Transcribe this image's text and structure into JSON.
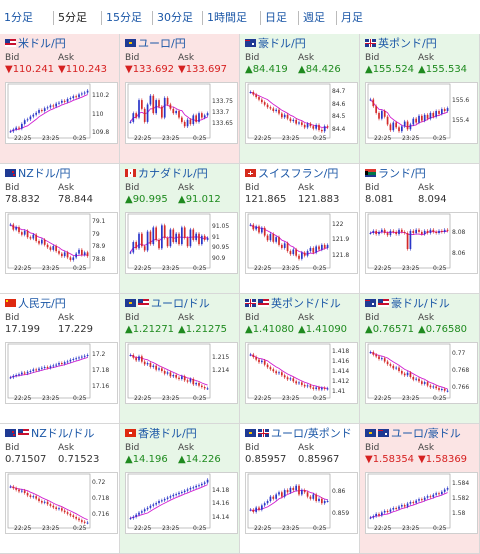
{
  "colors": {
    "up": "#1e8a1e",
    "down": "#d62020",
    "link": "#1a56a6",
    "ma": "#d11fd1",
    "bull": "#2a36c8",
    "bear": "#d42a2a"
  },
  "tabs": [
    {
      "label": "1分足",
      "active": false
    },
    {
      "label": "5分足",
      "active": true
    },
    {
      "label": "15分足",
      "active": false
    },
    {
      "label": "30分足",
      "active": false
    },
    {
      "label": "1時間足",
      "active": false
    },
    {
      "label": "日足",
      "active": false
    },
    {
      "label": "週足",
      "active": false
    },
    {
      "label": "月足",
      "active": false
    }
  ],
  "quotes": [
    {
      "pair": "米ドル/円",
      "flag": "us",
      "bid_label": "Bid",
      "ask_label": "Ask",
      "bid": "▼110.241",
      "ask": "▼110.243",
      "trend": "down",
      "chart": {
        "ylabels": [
          "110.2",
          "110",
          "109.8"
        ],
        "xlabels": [
          "22:25",
          "23:25",
          "0:25"
        ],
        "yrange": [
          109.78,
          110.3
        ],
        "closes": [
          109.82,
          109.84,
          109.86,
          109.85,
          109.9,
          109.94,
          109.95,
          109.98,
          110.0,
          110.02,
          110.05,
          110.04,
          110.07,
          110.08,
          110.1,
          110.09,
          110.12,
          110.13,
          110.15,
          110.14,
          110.17,
          110.18,
          110.2,
          110.19,
          110.22,
          110.23,
          110.24,
          110.26
        ]
      }
    },
    {
      "pair": "ユーロ/円",
      "flag": "eu",
      "bid_label": "Bid",
      "ask_label": "Ask",
      "bid": "▼133.692",
      "ask": "▼133.697",
      "trend": "down",
      "chart": {
        "ylabels": [
          "133.75",
          "133.7",
          "133.65"
        ],
        "xlabels": [
          "22:25",
          "23:25",
          "0:25"
        ],
        "yrange": [
          133.6,
          133.82
        ],
        "closes": [
          133.66,
          133.7,
          133.68,
          133.76,
          133.72,
          133.66,
          133.74,
          133.78,
          133.7,
          133.76,
          133.73,
          133.68,
          133.77,
          133.74,
          133.72,
          133.7,
          133.71,
          133.68,
          133.66,
          133.64,
          133.67,
          133.65,
          133.69,
          133.66,
          133.7,
          133.68,
          133.69,
          133.7
        ]
      }
    },
    {
      "pair": "豪ドル/円",
      "flag": "au",
      "bid_label": "Bid",
      "ask_label": "Ask",
      "bid": "▲84.419",
      "ask": "▲84.426",
      "trend": "up",
      "chart": {
        "ylabels": [
          "84.7",
          "84.6",
          "84.5",
          "84.4"
        ],
        "xlabels": [
          "22:25",
          "23:25",
          "0:25"
        ],
        "yrange": [
          84.36,
          84.74
        ],
        "closes": [
          84.7,
          84.68,
          84.66,
          84.64,
          84.62,
          84.6,
          84.58,
          84.57,
          84.55,
          84.56,
          84.53,
          84.5,
          84.52,
          84.49,
          84.47,
          84.48,
          84.45,
          84.46,
          84.44,
          84.42,
          84.45,
          84.43,
          84.41,
          84.44,
          84.4,
          84.39,
          84.43,
          84.42
        ]
      }
    },
    {
      "pair": "英ポンド/円",
      "flag": "gb",
      "bid_label": "Bid",
      "ask_label": "Ask",
      "bid": "▲155.524",
      "ask": "▲155.534",
      "trend": "up",
      "chart": {
        "ylabels": [
          "155.6",
          "155.4"
        ],
        "xlabels": [
          "22:25",
          "23:25",
          "0:25"
        ],
        "yrange": [
          155.25,
          155.75
        ],
        "closes": [
          155.62,
          155.55,
          155.48,
          155.42,
          155.5,
          155.44,
          155.36,
          155.3,
          155.38,
          155.33,
          155.29,
          155.34,
          155.39,
          155.31,
          155.36,
          155.42,
          155.38,
          155.45,
          155.4,
          155.46,
          155.42,
          155.48,
          155.44,
          155.5,
          155.47,
          155.52,
          155.5,
          155.53
        ]
      }
    },
    {
      "pair": "NZドル/円",
      "flag": "nz",
      "bid_label": "Bid",
      "ask_label": "Ask",
      "bid": "78.832",
      "ask": "78.844",
      "trend": "flat",
      "chart": {
        "ylabels": [
          "79.1",
          "79",
          "78.9",
          "78.8"
        ],
        "xlabels": [
          "22:25",
          "23:25",
          "0:25"
        ],
        "yrange": [
          78.76,
          79.14
        ],
        "closes": [
          79.08,
          79.04,
          79.06,
          79.02,
          79.0,
          79.03,
          78.98,
          78.97,
          79.0,
          78.95,
          78.93,
          78.96,
          78.92,
          78.9,
          78.88,
          78.91,
          78.87,
          78.85,
          78.83,
          78.86,
          78.82,
          78.8,
          78.82,
          78.85,
          78.88,
          78.84,
          78.86,
          78.83
        ]
      }
    },
    {
      "pair": "カナダドル/円",
      "flag": "ca",
      "bid_label": "Bid",
      "ask_label": "Ask",
      "bid": "▲90.995",
      "ask": "▲91.012",
      "trend": "up",
      "chart": {
        "ylabels": [
          "91.05",
          "91",
          "90.95",
          "90.9"
        ],
        "xlabels": [
          "22:25",
          "23:25",
          "0:25"
        ],
        "yrange": [
          90.87,
          91.1
        ],
        "closes": [
          90.93,
          90.98,
          90.95,
          91.02,
          90.96,
          90.94,
          91.03,
          90.97,
          91.05,
          90.99,
          90.95,
          91.06,
          91.0,
          90.96,
          91.04,
          90.98,
          91.02,
          90.97,
          91.05,
          91.0,
          90.96,
          91.04,
          90.99,
          91.02,
          90.97,
          91.01,
          90.99,
          91.0
        ]
      }
    },
    {
      "pair": "スイスフラン/円",
      "flag": "ch",
      "bid_label": "Bid",
      "ask_label": "Ask",
      "bid": "121.865",
      "ask": "121.883",
      "trend": "flat",
      "chart": {
        "ylabels": [
          "122",
          "121.9",
          "121.8"
        ],
        "xlabels": [
          "22:25",
          "23:25",
          "0:25"
        ],
        "yrange": [
          121.74,
          122.05
        ],
        "closes": [
          122.0,
          121.97,
          121.99,
          121.95,
          121.98,
          121.93,
          121.9,
          121.94,
          121.89,
          121.92,
          121.87,
          121.85,
          121.88,
          121.83,
          121.81,
          121.84,
          121.8,
          121.78,
          121.82,
          121.8,
          121.83,
          121.85,
          121.82,
          121.86,
          121.84,
          121.87,
          121.85,
          121.87
        ]
      }
    },
    {
      "pair": "ランド/円",
      "flag": "za",
      "bid_label": "Bid",
      "ask_label": "Ask",
      "bid": "8.081",
      "ask": "8.094",
      "trend": "flat",
      "chart": {
        "ylabels": [
          "8.08",
          "8.06"
        ],
        "xlabels": [
          "22:25",
          "23:25",
          "0:25"
        ],
        "yrange": [
          8.05,
          8.095
        ],
        "closes": [
          8.08,
          8.082,
          8.079,
          8.081,
          8.083,
          8.08,
          8.078,
          8.082,
          8.081,
          8.079,
          8.083,
          8.081,
          8.08,
          8.065,
          8.082,
          8.08,
          8.083,
          8.081,
          8.079,
          8.082,
          8.08,
          8.083,
          8.081,
          8.08,
          8.082,
          8.081,
          8.083,
          8.082
        ]
      }
    },
    {
      "pair": "人民元/円",
      "flag": "cn",
      "bid_label": "Bid",
      "ask_label": "Ask",
      "bid": "17.199",
      "ask": "17.229",
      "trend": "flat",
      "chart": {
        "ylabels": [
          "17.2",
          "17.18",
          "17.16"
        ],
        "xlabels": [
          "22:25",
          "23:25",
          "0:25"
        ],
        "yrange": [
          17.15,
          17.21
        ],
        "closes": [
          17.172,
          17.174,
          17.175,
          17.176,
          17.178,
          17.177,
          17.179,
          17.18,
          17.182,
          17.181,
          17.183,
          17.184,
          17.185,
          17.184,
          17.186,
          17.187,
          17.188,
          17.19,
          17.189,
          17.191,
          17.192,
          17.194,
          17.195,
          17.196,
          17.197,
          17.198,
          17.199,
          17.2
        ]
      }
    },
    {
      "pair": "ユーロ/ドル",
      "flag": "eu-us",
      "bid_label": "Bid",
      "ask_label": "Ask",
      "bid": "▲1.21271",
      "ask": "▲1.21275",
      "trend": "up",
      "chart": {
        "ylabels": [
          "1.215",
          "1.214"
        ],
        "xlabels": [
          "22:25",
          "23:25",
          "0:25"
        ],
        "yrange": [
          1.2122,
          1.2158
        ],
        "closes": [
          1.2152,
          1.215,
          1.2148,
          1.2151,
          1.2147,
          1.2145,
          1.2146,
          1.2143,
          1.2144,
          1.2141,
          1.2142,
          1.214,
          1.2138,
          1.2139,
          1.2136,
          1.2137,
          1.2135,
          1.2134,
          1.2136,
          1.2133,
          1.2132,
          1.2134,
          1.213,
          1.2131,
          1.2129,
          1.2128,
          1.2127,
          1.2127
        ]
      }
    },
    {
      "pair": "英ポンド/ドル",
      "flag": "gb-us",
      "bid_label": "Bid",
      "ask_label": "Ask",
      "bid": "▲1.41080",
      "ask": "▲1.41090",
      "trend": "up",
      "chart": {
        "ylabels": [
          "1.418",
          "1.416",
          "1.414",
          "1.412",
          "1.41"
        ],
        "xlabels": [
          "22:25",
          "23:25",
          "0:25"
        ],
        "yrange": [
          1.4095,
          1.419
        ],
        "closes": [
          1.4175,
          1.417,
          1.4165,
          1.416,
          1.4163,
          1.4155,
          1.415,
          1.4146,
          1.4142,
          1.4138,
          1.414,
          1.4134,
          1.413,
          1.4126,
          1.4128,
          1.4122,
          1.4118,
          1.412,
          1.4115,
          1.4112,
          1.4114,
          1.411,
          1.4107,
          1.411,
          1.4106,
          1.4109,
          1.4107,
          1.4108
        ]
      }
    },
    {
      "pair": "豪ドル/ドル",
      "flag": "au-us",
      "bid_label": "Bid",
      "ask_label": "Ask",
      "bid": "▲0.76571",
      "ask": "▲0.76580",
      "trend": "up",
      "chart": {
        "ylabels": [
          "0.77",
          "0.768",
          "0.766"
        ],
        "xlabels": [
          "22:25",
          "23:25",
          "0:25"
        ],
        "yrange": [
          0.7652,
          0.7708
        ],
        "closes": [
          0.7702,
          0.7699,
          0.7697,
          0.7694,
          0.7695,
          0.7691,
          0.7688,
          0.7686,
          0.7683,
          0.7684,
          0.768,
          0.7677,
          0.7675,
          0.7678,
          0.7673,
          0.767,
          0.7671,
          0.7668,
          0.7665,
          0.7667,
          0.7663,
          0.7661,
          0.7662,
          0.766,
          0.7658,
          0.7659,
          0.7657,
          0.7657
        ]
      }
    },
    {
      "pair": "NZドル/ドル",
      "flag": "nz-us",
      "bid_label": "Bid",
      "ask_label": "Ask",
      "bid": "0.71507",
      "ask": "0.71523",
      "trend": "flat",
      "chart": {
        "ylabels": [
          "0.72",
          "0.718",
          "0.716"
        ],
        "xlabels": [
          "22:25",
          "23:25",
          "0:25"
        ],
        "yrange": [
          0.7148,
          0.7208
        ],
        "closes": [
          0.7196,
          0.7194,
          0.7192,
          0.719,
          0.7191,
          0.7188,
          0.7185,
          0.7183,
          0.7184,
          0.7181,
          0.7178,
          0.7176,
          0.7177,
          0.7174,
          0.7172,
          0.717,
          0.7168,
          0.7169,
          0.7166,
          0.7164,
          0.7162,
          0.716,
          0.7158,
          0.7156,
          0.7154,
          0.7152,
          0.7151,
          0.7151
        ]
      }
    },
    {
      "pair": "香港ドル/円",
      "flag": "hk",
      "bid_label": "Bid",
      "ask_label": "Ask",
      "bid": "▲14.196",
      "ask": "▲14.226",
      "trend": "up",
      "chart": {
        "ylabels": [
          "14.18",
          "14.16",
          "14.14"
        ],
        "xlabels": [
          "22:25",
          "23:25",
          "0:25"
        ],
        "yrange": [
          14.13,
          14.2
        ],
        "closes": [
          14.14,
          14.142,
          14.145,
          14.148,
          14.15,
          14.153,
          14.155,
          14.158,
          14.16,
          14.162,
          14.165,
          14.166,
          14.168,
          14.17,
          14.172,
          14.174,
          14.175,
          14.177,
          14.178,
          14.18,
          14.182,
          14.184,
          14.185,
          14.187,
          14.188,
          14.19,
          14.192,
          14.196
        ]
      }
    },
    {
      "pair": "ユーロ/英ポンド",
      "flag": "eu-gb",
      "bid_label": "Bid",
      "ask_label": "Ask",
      "bid": "0.85957",
      "ask": "0.85967",
      "trend": "flat",
      "chart": {
        "ylabels": [
          "0.86",
          "0.859"
        ],
        "xlabels": [
          "22:25",
          "23:25",
          "0:25"
        ],
        "yrange": [
          0.8585,
          0.8607
        ],
        "closes": [
          0.8592,
          0.8591,
          0.8593,
          0.8592,
          0.8594,
          0.8595,
          0.8596,
          0.8598,
          0.8597,
          0.8599,
          0.86,
          0.8598,
          0.8601,
          0.86,
          0.8602,
          0.8601,
          0.8603,
          0.8599,
          0.8601,
          0.86,
          0.8598,
          0.8597,
          0.8599,
          0.8596,
          0.8597,
          0.8595,
          0.8596,
          0.8596
        ]
      }
    },
    {
      "pair": "ユーロ/豪ドル",
      "flag": "eu-au",
      "bid_label": "Bid",
      "ask_label": "Ask",
      "bid": "▼1.58354",
      "ask": "▼1.58369",
      "trend": "down",
      "chart": {
        "ylabels": [
          "1.584",
          "1.582",
          "1.58"
        ],
        "xlabels": [
          "22:25",
          "23:25",
          "0:25"
        ],
        "yrange": [
          1.5785,
          1.585
        ],
        "closes": [
          1.5795,
          1.5797,
          1.58,
          1.5798,
          1.5802,
          1.5804,
          1.5803,
          1.5806,
          1.5808,
          1.5807,
          1.581,
          1.5812,
          1.581,
          1.5814,
          1.5816,
          1.5815,
          1.5818,
          1.582,
          1.5819,
          1.5822,
          1.5824,
          1.5823,
          1.5826,
          1.5828,
          1.5827,
          1.583,
          1.5833,
          1.5835
        ]
      }
    }
  ]
}
